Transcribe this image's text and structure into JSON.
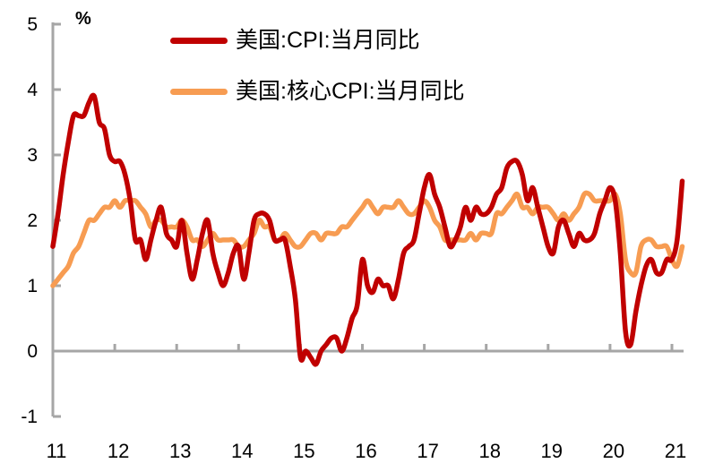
{
  "chart": {
    "unit": "%",
    "legend": [
      {
        "label": "美国:CPI:当月同比",
        "color": "#C00000"
      },
      {
        "label": "美国:核心CPI:当月同比",
        "color": "#F79C52"
      }
    ],
    "axis_color": "#A6A6A6",
    "text_color": "#000000"
  },
  "chart_data": {
    "type": "line",
    "title": "",
    "xlabel": "",
    "ylabel": "%",
    "ylim": [
      -1,
      5
    ],
    "y_ticks": [
      5,
      4,
      3,
      2,
      1,
      0,
      -1
    ],
    "x_tick_labels": [
      "11",
      "12",
      "13",
      "14",
      "15",
      "16",
      "17",
      "18",
      "19",
      "20",
      "21"
    ],
    "x_start": "2011-01",
    "x_end": "2021-03",
    "x_frequency": "monthly",
    "grid": false,
    "legend_position": "top-left-inside",
    "series": [
      {
        "name": "美国:CPI:当月同比",
        "color": "#C00000",
        "values": [
          1.6,
          2.1,
          2.7,
          3.2,
          3.6,
          3.6,
          3.6,
          3.8,
          3.9,
          3.5,
          3.4,
          3.0,
          2.9,
          2.9,
          2.7,
          2.3,
          1.7,
          1.7,
          1.4,
          1.7,
          2.0,
          2.2,
          1.8,
          1.7,
          1.6,
          2.0,
          1.5,
          1.1,
          1.4,
          1.8,
          2.0,
          1.5,
          1.2,
          1.0,
          1.2,
          1.5,
          1.6,
          1.1,
          1.5,
          2.0,
          2.1,
          2.1,
          2.0,
          1.7,
          1.7,
          1.7,
          1.3,
          0.8,
          -0.1,
          0.0,
          -0.1,
          -0.2,
          0.0,
          0.1,
          0.2,
          0.2,
          0.0,
          0.2,
          0.5,
          0.7,
          1.4,
          1.0,
          0.9,
          1.1,
          1.0,
          1.0,
          0.8,
          1.1,
          1.5,
          1.6,
          1.7,
          2.1,
          2.5,
          2.7,
          2.4,
          2.2,
          1.9,
          1.6,
          1.7,
          1.9,
          2.2,
          2.0,
          2.2,
          2.1,
          2.1,
          2.2,
          2.4,
          2.5,
          2.8,
          2.9,
          2.9,
          2.7,
          2.3,
          2.5,
          2.2,
          1.9,
          1.6,
          1.5,
          1.9,
          2.0,
          1.8,
          1.6,
          1.8,
          1.7,
          1.7,
          1.8,
          2.1,
          2.3,
          2.5,
          2.3,
          1.5,
          0.3,
          0.1,
          0.6,
          1.0,
          1.3,
          1.4,
          1.2,
          1.2,
          1.4,
          1.4,
          1.7,
          2.6
        ]
      },
      {
        "name": "美国:核心CPI:当月同比",
        "color": "#F79C52",
        "values": [
          1.0,
          1.1,
          1.2,
          1.3,
          1.5,
          1.6,
          1.8,
          2.0,
          2.0,
          2.1,
          2.2,
          2.2,
          2.3,
          2.2,
          2.3,
          2.3,
          2.3,
          2.2,
          2.1,
          1.9,
          2.0,
          2.0,
          1.9,
          1.9,
          1.9,
          2.0,
          1.9,
          1.7,
          1.7,
          1.6,
          1.7,
          1.8,
          1.7,
          1.7,
          1.7,
          1.7,
          1.6,
          1.6,
          1.7,
          1.8,
          2.0,
          1.9,
          1.9,
          1.7,
          1.7,
          1.8,
          1.7,
          1.6,
          1.6,
          1.7,
          1.8,
          1.8,
          1.7,
          1.8,
          1.8,
          1.8,
          1.9,
          1.9,
          2.0,
          2.1,
          2.2,
          2.3,
          2.2,
          2.1,
          2.2,
          2.2,
          2.2,
          2.3,
          2.2,
          2.1,
          2.1,
          2.2,
          2.3,
          2.2,
          2.0,
          1.9,
          1.7,
          1.7,
          1.7,
          1.7,
          1.7,
          1.8,
          1.7,
          1.8,
          1.8,
          1.8,
          2.1,
          2.1,
          2.2,
          2.3,
          2.4,
          2.2,
          2.2,
          2.1,
          2.2,
          2.2,
          2.2,
          2.1,
          2.0,
          2.1,
          2.0,
          2.1,
          2.2,
          2.4,
          2.4,
          2.3,
          2.3,
          2.3,
          2.3,
          2.4,
          2.1,
          1.4,
          1.2,
          1.2,
          1.6,
          1.7,
          1.7,
          1.6,
          1.6,
          1.6,
          1.4,
          1.3,
          1.6
        ]
      }
    ]
  }
}
